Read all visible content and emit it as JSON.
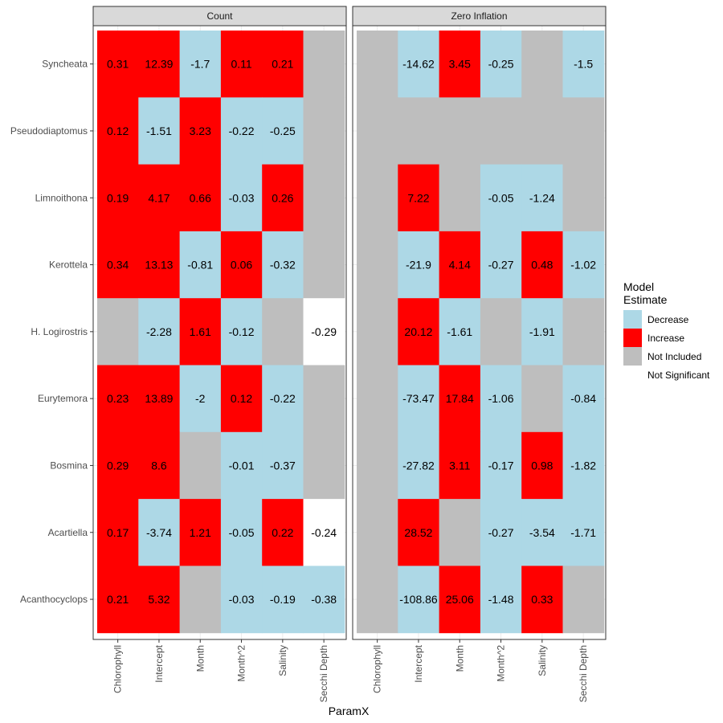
{
  "chart_data": {
    "type": "heatmap",
    "xlabel": "ParamX",
    "ylabel": "",
    "legend": {
      "title_lines": [
        "Model",
        "Estimate"
      ],
      "position": "right",
      "entries": [
        {
          "key": "Decrease",
          "label": "Decrease",
          "color": "#add8e6"
        },
        {
          "key": "Increase",
          "label": "Increase",
          "color": "#ff0000"
        },
        {
          "key": "Not Included",
          "label": "Not Included",
          "color": "#bebebe"
        },
        {
          "key": "Not Significant",
          "label": "Not Significant",
          "color": "#ffffff"
        }
      ]
    },
    "columns": [
      "Chlorophyll",
      "Intercept",
      "Month",
      "Month^2",
      "Salinity",
      "Secchi Depth"
    ],
    "rows": [
      "Syncheata",
      "Pseudodiaptomus",
      "Limnoithona",
      "Kerottela",
      "H. Logirostris",
      "Eurytemora",
      "Bosmina",
      "Acartiella",
      "Acanthocyclops"
    ],
    "panels": [
      {
        "title": "Count",
        "cells": [
          [
            {
              "cat": "Increase",
              "value": "0.31"
            },
            {
              "cat": "Increase",
              "value": "12.39"
            },
            {
              "cat": "Decrease",
              "value": "-1.7"
            },
            {
              "cat": "Increase",
              "value": "0.11"
            },
            {
              "cat": "Increase",
              "value": "0.21"
            },
            {
              "cat": "Not Included",
              "value": ""
            }
          ],
          [
            {
              "cat": "Increase",
              "value": "0.12"
            },
            {
              "cat": "Decrease",
              "value": "-1.51"
            },
            {
              "cat": "Increase",
              "value": "3.23"
            },
            {
              "cat": "Decrease",
              "value": "-0.22"
            },
            {
              "cat": "Decrease",
              "value": "-0.25"
            },
            {
              "cat": "Not Included",
              "value": ""
            }
          ],
          [
            {
              "cat": "Increase",
              "value": "0.19"
            },
            {
              "cat": "Increase",
              "value": "4.17"
            },
            {
              "cat": "Increase",
              "value": "0.66"
            },
            {
              "cat": "Decrease",
              "value": "-0.03"
            },
            {
              "cat": "Increase",
              "value": "0.26"
            },
            {
              "cat": "Not Included",
              "value": ""
            }
          ],
          [
            {
              "cat": "Increase",
              "value": "0.34"
            },
            {
              "cat": "Increase",
              "value": "13.13"
            },
            {
              "cat": "Decrease",
              "value": "-0.81"
            },
            {
              "cat": "Increase",
              "value": "0.06"
            },
            {
              "cat": "Decrease",
              "value": "-0.32"
            },
            {
              "cat": "Not Included",
              "value": ""
            }
          ],
          [
            {
              "cat": "Not Included",
              "value": ""
            },
            {
              "cat": "Decrease",
              "value": "-2.28"
            },
            {
              "cat": "Increase",
              "value": "1.61"
            },
            {
              "cat": "Decrease",
              "value": "-0.12"
            },
            {
              "cat": "Not Included",
              "value": ""
            },
            {
              "cat": "Not Significant",
              "value": "-0.29"
            }
          ],
          [
            {
              "cat": "Increase",
              "value": "0.23"
            },
            {
              "cat": "Increase",
              "value": "13.89"
            },
            {
              "cat": "Decrease",
              "value": "-2"
            },
            {
              "cat": "Increase",
              "value": "0.12"
            },
            {
              "cat": "Decrease",
              "value": "-0.22"
            },
            {
              "cat": "Not Included",
              "value": ""
            }
          ],
          [
            {
              "cat": "Increase",
              "value": "0.29"
            },
            {
              "cat": "Increase",
              "value": "8.6"
            },
            {
              "cat": "Not Included",
              "value": ""
            },
            {
              "cat": "Decrease",
              "value": "-0.01"
            },
            {
              "cat": "Decrease",
              "value": "-0.37"
            },
            {
              "cat": "Not Included",
              "value": ""
            }
          ],
          [
            {
              "cat": "Increase",
              "value": "0.17"
            },
            {
              "cat": "Decrease",
              "value": "-3.74"
            },
            {
              "cat": "Increase",
              "value": "1.21"
            },
            {
              "cat": "Decrease",
              "value": "-0.05"
            },
            {
              "cat": "Increase",
              "value": "0.22"
            },
            {
              "cat": "Not Significant",
              "value": "-0.24"
            }
          ],
          [
            {
              "cat": "Increase",
              "value": "0.21"
            },
            {
              "cat": "Increase",
              "value": "5.32"
            },
            {
              "cat": "Not Included",
              "value": ""
            },
            {
              "cat": "Decrease",
              "value": "-0.03"
            },
            {
              "cat": "Decrease",
              "value": "-0.19"
            },
            {
              "cat": "Decrease",
              "value": "-0.38"
            }
          ]
        ]
      },
      {
        "title": "Zero Inflation",
        "cells": [
          [
            {
              "cat": "Not Included",
              "value": ""
            },
            {
              "cat": "Decrease",
              "value": "-14.62"
            },
            {
              "cat": "Increase",
              "value": "3.45"
            },
            {
              "cat": "Decrease",
              "value": "-0.25"
            },
            {
              "cat": "Not Included",
              "value": ""
            },
            {
              "cat": "Decrease",
              "value": "-1.5"
            }
          ],
          [
            {
              "cat": "Not Included",
              "value": ""
            },
            {
              "cat": "Not Included",
              "value": ""
            },
            {
              "cat": "Not Included",
              "value": ""
            },
            {
              "cat": "Not Included",
              "value": ""
            },
            {
              "cat": "Not Included",
              "value": ""
            },
            {
              "cat": "Not Included",
              "value": ""
            }
          ],
          [
            {
              "cat": "Not Included",
              "value": ""
            },
            {
              "cat": "Increase",
              "value": "7.22"
            },
            {
              "cat": "Not Included",
              "value": ""
            },
            {
              "cat": "Decrease",
              "value": "-0.05"
            },
            {
              "cat": "Decrease",
              "value": "-1.24"
            },
            {
              "cat": "Not Included",
              "value": ""
            }
          ],
          [
            {
              "cat": "Not Included",
              "value": ""
            },
            {
              "cat": "Decrease",
              "value": "-21.9"
            },
            {
              "cat": "Increase",
              "value": "4.14"
            },
            {
              "cat": "Decrease",
              "value": "-0.27"
            },
            {
              "cat": "Increase",
              "value": "0.48"
            },
            {
              "cat": "Decrease",
              "value": "-1.02"
            }
          ],
          [
            {
              "cat": "Not Included",
              "value": ""
            },
            {
              "cat": "Increase",
              "value": "20.12"
            },
            {
              "cat": "Decrease",
              "value": "-1.61"
            },
            {
              "cat": "Not Included",
              "value": ""
            },
            {
              "cat": "Decrease",
              "value": "-1.91"
            },
            {
              "cat": "Not Included",
              "value": ""
            }
          ],
          [
            {
              "cat": "Not Included",
              "value": ""
            },
            {
              "cat": "Decrease",
              "value": "-73.47"
            },
            {
              "cat": "Increase",
              "value": "17.84"
            },
            {
              "cat": "Decrease",
              "value": "-1.06"
            },
            {
              "cat": "Not Included",
              "value": ""
            },
            {
              "cat": "Decrease",
              "value": "-0.84"
            }
          ],
          [
            {
              "cat": "Not Included",
              "value": ""
            },
            {
              "cat": "Decrease",
              "value": "-27.82"
            },
            {
              "cat": "Increase",
              "value": "3.11"
            },
            {
              "cat": "Decrease",
              "value": "-0.17"
            },
            {
              "cat": "Increase",
              "value": "0.98"
            },
            {
              "cat": "Decrease",
              "value": "-1.82"
            }
          ],
          [
            {
              "cat": "Not Included",
              "value": ""
            },
            {
              "cat": "Increase",
              "value": "28.52"
            },
            {
              "cat": "Not Included",
              "value": ""
            },
            {
              "cat": "Decrease",
              "value": "-0.27"
            },
            {
              "cat": "Decrease",
              "value": "-3.54"
            },
            {
              "cat": "Decrease",
              "value": "-1.71"
            }
          ],
          [
            {
              "cat": "Not Included",
              "value": ""
            },
            {
              "cat": "Decrease",
              "value": "-108.86"
            },
            {
              "cat": "Increase",
              "value": "25.06"
            },
            {
              "cat": "Decrease",
              "value": "-1.48"
            },
            {
              "cat": "Increase",
              "value": "0.33"
            },
            {
              "cat": "Not Included",
              "value": ""
            }
          ]
        ]
      }
    ]
  }
}
